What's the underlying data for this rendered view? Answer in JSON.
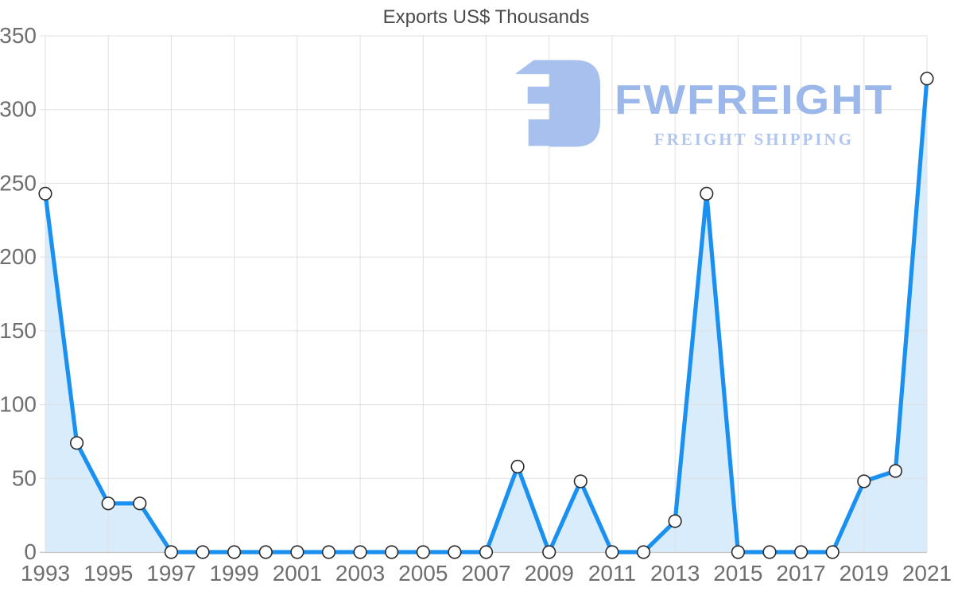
{
  "title": "Exports US$ Thousands",
  "watermark": {
    "brand": "FWFREIGHT",
    "tagline": "FREIGHT SHIPPING",
    "icon": "fwfreight-logo-icon"
  },
  "colors": {
    "line": "#1a91f0",
    "area_fill": "rgba(25,140,240,0.17)",
    "marker_fill": "#ffffff",
    "marker_stroke": "#2a2a2a",
    "grid": "#e0e0e0",
    "axis_line": "#c8c8c8",
    "tick_label": "#6e6e6e",
    "title": "#4a4a4a",
    "watermark_icon": "#a7c0ed",
    "watermark_brand": "#9cb8ea",
    "watermark_tagline": "#b0c6ef"
  },
  "chart_data": {
    "type": "area",
    "title": "Exports US$ Thousands",
    "xlabel": "",
    "ylabel": "",
    "x": [
      1993,
      1994,
      1995,
      1996,
      1997,
      1998,
      1999,
      2000,
      2001,
      2002,
      2003,
      2004,
      2005,
      2006,
      2007,
      2008,
      2009,
      2010,
      2011,
      2012,
      2013,
      2014,
      2015,
      2016,
      2017,
      2018,
      2019,
      2020,
      2021
    ],
    "values": [
      243,
      74,
      33,
      33,
      0,
      0,
      0,
      0,
      0,
      0,
      0,
      0,
      0,
      0,
      0,
      58,
      0,
      48,
      0,
      0,
      21,
      243,
      0,
      0,
      0,
      0,
      48,
      55,
      321
    ],
    "xlim": [
      1993,
      2021
    ],
    "ylim": [
      0,
      350
    ],
    "x_ticks": [
      1993,
      1995,
      1997,
      1999,
      2001,
      2003,
      2005,
      2007,
      2009,
      2011,
      2013,
      2015,
      2017,
      2019,
      2021
    ],
    "y_ticks": [
      0,
      50,
      100,
      150,
      200,
      250,
      300,
      350
    ],
    "grid": true,
    "legend": false,
    "markers": true
  }
}
